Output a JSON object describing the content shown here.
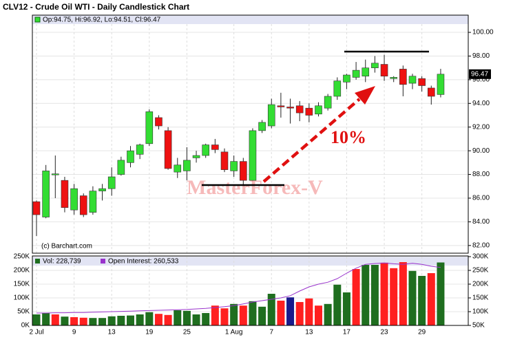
{
  "chart_data": [
    {
      "type": "candlestick",
      "title": "CLV12 - Crude Oil WTI - Daily Candlestick Chart",
      "legend_text": "Op:94.75, Hi:96.92, Lo:94.51, Cl:96.47",
      "source": "(c) Barchart.com",
      "annotation": "10%",
      "watermark": "MasterForex-V",
      "categories": [
        "2 Jul",
        null,
        null,
        null,
        "9",
        null,
        null,
        null,
        "13",
        null,
        null,
        null,
        "19",
        null,
        null,
        null,
        "25",
        null,
        null,
        null,
        null,
        "1 Aug",
        null,
        null,
        null,
        "7",
        null,
        null,
        null,
        "13",
        null,
        null,
        null,
        "17",
        null,
        null,
        null,
        "23",
        null,
        null,
        null,
        "29",
        null,
        null
      ],
      "open": [
        85.7,
        84.4,
        88.0,
        87.5,
        85.0,
        86.2,
        84.8,
        86.6,
        86.8,
        88.0,
        89.0,
        89.7,
        90.6,
        92.8,
        91.7,
        88.2,
        88.3,
        89.4,
        89.6,
        90.5,
        89.9,
        88.3,
        89.1,
        87.5,
        91.7,
        92.1,
        93.8,
        93.7,
        93.8,
        93.6,
        93.1,
        93.6,
        94.6,
        95.8,
        96.2,
        96.3,
        97.0,
        97.3,
        96.1,
        96.9,
        95.7,
        96.1,
        95.3,
        94.75
      ],
      "high": [
        85.8,
        88.8,
        89.6,
        87.8,
        87.2,
        86.4,
        87.0,
        87.2,
        88.6,
        89.5,
        90.4,
        90.6,
        93.5,
        93.0,
        92.0,
        89.4,
        90.3,
        90.0,
        90.6,
        91.0,
        90.2,
        89.6,
        89.4,
        91.9,
        92.6,
        94.4,
        94.9,
        94.4,
        94.2,
        94.0,
        94.1,
        94.8,
        96.2,
        96.5,
        97.5,
        97.7,
        98.0,
        98.1,
        96.3,
        97.2,
        96.5,
        96.3,
        95.5,
        96.92
      ],
      "low": [
        82.8,
        84.3,
        86.0,
        84.8,
        84.6,
        84.4,
        84.6,
        85.8,
        86.2,
        87.9,
        88.6,
        89.3,
        90.4,
        91.8,
        88.4,
        87.7,
        87.5,
        89.0,
        89.4,
        89.8,
        88.2,
        87.8,
        87.0,
        87.4,
        91.5,
        91.9,
        92.8,
        92.3,
        92.5,
        92.4,
        92.9,
        93.4,
        94.3,
        95.2,
        96.0,
        95.8,
        96.6,
        95.9,
        95.8,
        94.6,
        95.2,
        95.0,
        93.9,
        94.51
      ],
      "close": [
        84.6,
        88.3,
        88.05,
        85.2,
        86.8,
        84.6,
        86.6,
        86.8,
        87.8,
        89.2,
        90.0,
        90.5,
        93.3,
        92.1,
        88.5,
        88.8,
        89.2,
        89.6,
        90.5,
        90.1,
        88.4,
        89.1,
        87.5,
        91.7,
        92.4,
        93.9,
        93.7,
        93.6,
        93.2,
        93.0,
        93.8,
        94.6,
        95.9,
        96.4,
        96.8,
        97.0,
        97.4,
        96.3,
        96.2,
        95.6,
        96.3,
        95.5,
        94.6,
        96.47
      ],
      "up_color": "#33dd33",
      "down_color": "#ee1111",
      "ylim": [
        81.35,
        100.7
      ],
      "yticks": [
        {
          "value": 82,
          "label": "82.00"
        },
        {
          "value": 84,
          "label": "84.00"
        },
        {
          "value": 86,
          "label": "86.00"
        },
        {
          "value": 88,
          "label": "88.00"
        },
        {
          "value": 90,
          "label": "90.00"
        },
        {
          "value": 92,
          "label": "92.00"
        },
        {
          "value": 94,
          "label": "94.00"
        },
        {
          "value": 96,
          "label": "96.00"
        },
        {
          "value": 98,
          "label": "98.00"
        },
        {
          "value": 100,
          "label": "100.00"
        }
      ],
      "grid": true
    },
    {
      "type": "bar",
      "series": [
        {
          "name": "Vol: 228,739",
          "color": "#1f6e1f",
          "colors": [
            "#1f6e1f",
            "#1f6e1f",
            "#ff2020",
            "#1f6e1f",
            "#ff2020",
            "#ff2020",
            "#1f6e1f",
            "#1f6e1f",
            "#1f6e1f",
            "#1f6e1f",
            "#1f6e1f",
            "#1f6e1f",
            "#1f6e1f",
            "#ff2020",
            "#ff2020",
            "#1f6e1f",
            "#1f6e1f",
            "#1f6e1f",
            "#1f6e1f",
            "#ff2020",
            "#ff2020",
            "#1f6e1f",
            "#ff2020",
            "#1f6e1f",
            "#1f6e1f",
            "#1f6e1f",
            "#ff2020",
            "#1a1a8c",
            "#ff2020",
            "#ff2020",
            "#ff2020",
            "#1f6e1f",
            "#1f6e1f",
            "#1f6e1f",
            "#ff2020",
            "#1f6e1f",
            "#1f6e1f",
            "#ff2020",
            "#ff2020",
            "#ff2020",
            "#1f6e1f",
            "#1f6e1f",
            "#ff2020",
            "#1f6e1f"
          ],
          "values": [
            40,
            45,
            40,
            32,
            30,
            28,
            27,
            27,
            33,
            35,
            36,
            40,
            48,
            42,
            38,
            55,
            53,
            40,
            45,
            72,
            62,
            78,
            72,
            88,
            68,
            115,
            90,
            102,
            85,
            98,
            72,
            78,
            148,
            120,
            205,
            220,
            220,
            228,
            208,
            230,
            198,
            180,
            190,
            228.739
          ]
        },
        {
          "name": "Open Interest: 260,533",
          "color": "#9933cc",
          "axis": "y2",
          "values": [
            95,
            95,
            96,
            96,
            97,
            97,
            98,
            99,
            100,
            101,
            102,
            103,
            104,
            105,
            106,
            107,
            108,
            110,
            112,
            115,
            118,
            122,
            128,
            135,
            140,
            145,
            150,
            158,
            175,
            190,
            200,
            207,
            220,
            240,
            258,
            272,
            275,
            277,
            274,
            272,
            276,
            272,
            265,
            260.533
          ]
        }
      ],
      "ylim": [
        0,
        250
      ],
      "yticks": [
        {
          "value": 0,
          "label": "0K"
        },
        {
          "value": 50,
          "label": "50K"
        },
        {
          "value": 100,
          "label": "100K"
        },
        {
          "value": 150,
          "label": "150K"
        },
        {
          "value": 200,
          "label": "200K"
        },
        {
          "value": 250,
          "label": "250K"
        }
      ],
      "y2lim": [
        50,
        300
      ],
      "y2ticks": [
        {
          "value": 50,
          "label": "50K"
        },
        {
          "value": 100,
          "label": "100K"
        },
        {
          "value": 150,
          "label": "150K"
        },
        {
          "value": 200,
          "label": "200K"
        },
        {
          "value": 250,
          "label": "250K"
        },
        {
          "value": 300,
          "label": "300K"
        }
      ]
    }
  ]
}
